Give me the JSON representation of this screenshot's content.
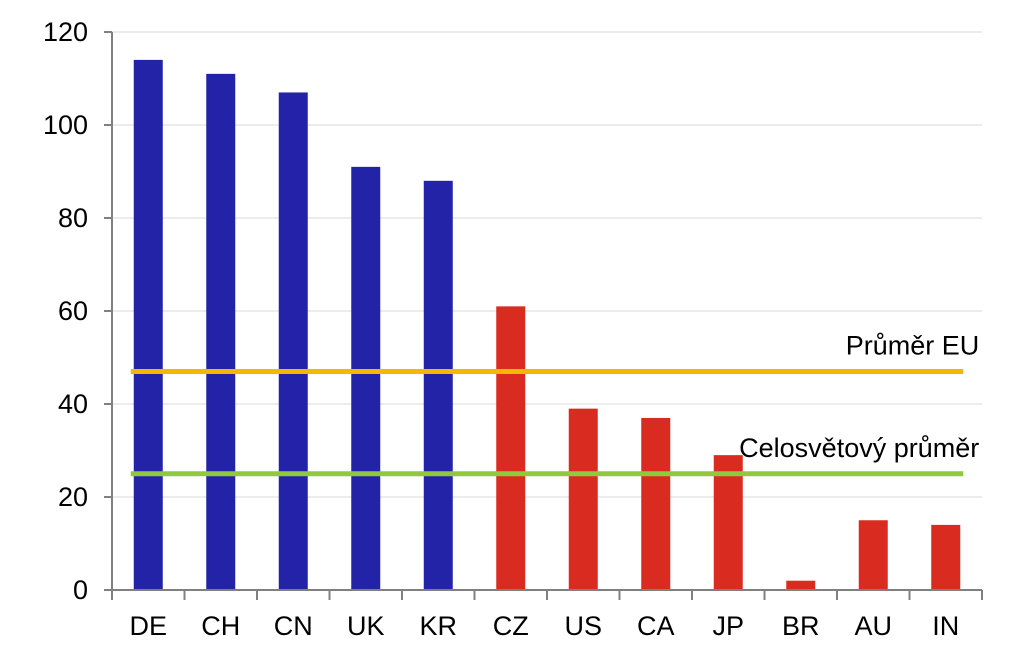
{
  "chart_data": {
    "type": "bar",
    "categories": [
      "DE",
      "CH",
      "CN",
      "UK",
      "KR",
      "CZ",
      "US",
      "CA",
      "JP",
      "BR",
      "AU",
      "IN"
    ],
    "values": [
      114,
      111,
      107,
      91,
      88,
      61,
      39,
      37,
      29,
      2,
      15,
      14
    ],
    "bar_colors": [
      "#2323a8",
      "#2323a8",
      "#2323a8",
      "#2323a8",
      "#2323a8",
      "#d92b1f",
      "#d92b1f",
      "#d92b1f",
      "#d92b1f",
      "#d92b1f",
      "#d92b1f",
      "#d92b1f"
    ],
    "ylim": [
      0,
      120
    ],
    "yticks": [
      0,
      20,
      40,
      60,
      80,
      100,
      120
    ],
    "grid": true,
    "title": "",
    "xlabel": "",
    "ylabel": "",
    "reference_lines": [
      {
        "label": "Průměr EU",
        "value": 47,
        "color": "#f5b800"
      },
      {
        "label": "Celosvětový průměr",
        "value": 25,
        "color": "#92c83e"
      }
    ]
  }
}
